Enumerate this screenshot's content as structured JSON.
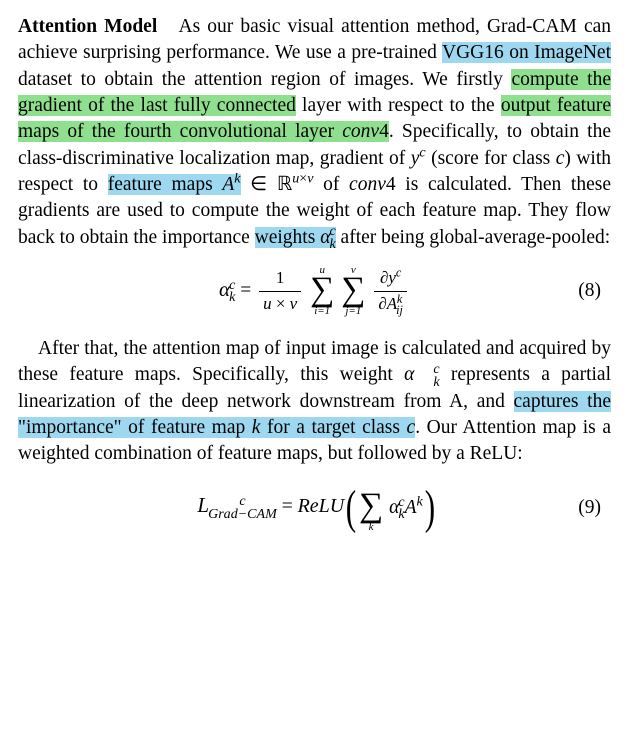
{
  "highlights": {
    "green_color": "#8ee08e",
    "blue_color": "#9dd8f0"
  },
  "para1": {
    "title": "Attention Model",
    "t1": "As our basic visual attention method, Grad-CAM can achieve surprising performance. We use a pre-trained ",
    "h1": "VGG16 on ImageNet",
    "t2": " dataset to obtain the atten­tion region of images. We firstly ",
    "h2": "compute the gradient of the last fully connected",
    "t3": " layer with respect to the ",
    "h3": "output feature maps of the fourth convolutional layer ",
    "h3_conv": "conv",
    "h3_conv_n": "4",
    "t4": ". Specifically, to obtain the class-discriminative localization map, gradien­t of ",
    "yc_y": "y",
    "yc_c": "c",
    "t5": " (score for class ",
    "c1": "c",
    "t6": ") with respect to ",
    "h4": "feature maps ",
    "h4_A": "A",
    "h4_k": "k",
    "t7a": " ∈ ",
    "R": "ℝ",
    "R_exp_u": "u",
    "R_exp_x": "×",
    "R_exp_v": "v",
    "t7b": " of ",
    "conv4_2": "conv",
    "conv4_2n": "4",
    "t8": " is calculated. Then these gradients are used to compute the weight of each feature map. They flow back to obtain the importance ",
    "h5": "weights ",
    "h5_alpha": "α",
    "h5_c": "c",
    "h5_k": "k",
    "t9": " after being global-average-pooled:"
  },
  "eq8": {
    "alpha": "α",
    "c": "c",
    "k": "k",
    "eq": " = ",
    "frac1_num": "1",
    "frac1_den_u": "u",
    "frac1_den_x": " × ",
    "frac1_den_v": "v",
    "sum1_top": "u",
    "sum_sym": "∑",
    "sum1_bot": "i=1",
    "sum2_top": "v",
    "sum2_bot": "j=1",
    "frac2_num_d": "∂",
    "frac2_num_y": "y",
    "frac2_num_c": "c",
    "frac2_den_d": "∂",
    "frac2_den_A": "A",
    "frac2_den_k": "k",
    "frac2_den_ij": "ij",
    "num": "(8)"
  },
  "para2": {
    "t1": "After that, the attention map of input image is calculat­ed and acquired by these feature maps. Specifically, this weight ",
    "alpha": "α",
    "c": "c",
    "k": "k",
    "t2": " represents a partial linearization of the deep net­work downstream from A, and ",
    "h1": "captures the \"importance\" of feature map ",
    "h1_k": "k",
    "h1_mid": " for a target class ",
    "h1_c": "c",
    "t3": ". Our Attention map is a weighted combination of feature maps, but followed by a ReLU:"
  },
  "eq9": {
    "L": "L",
    "L_c": "c",
    "L_sub": "Grad−CAM",
    "eq": " = ",
    "relu": "ReLU",
    "sum_sym": "∑",
    "sum_bot": "k",
    "alpha": "α",
    "a_c": "c",
    "a_k": "k",
    "A": "A",
    "A_k": "k",
    "num": "(9)"
  }
}
